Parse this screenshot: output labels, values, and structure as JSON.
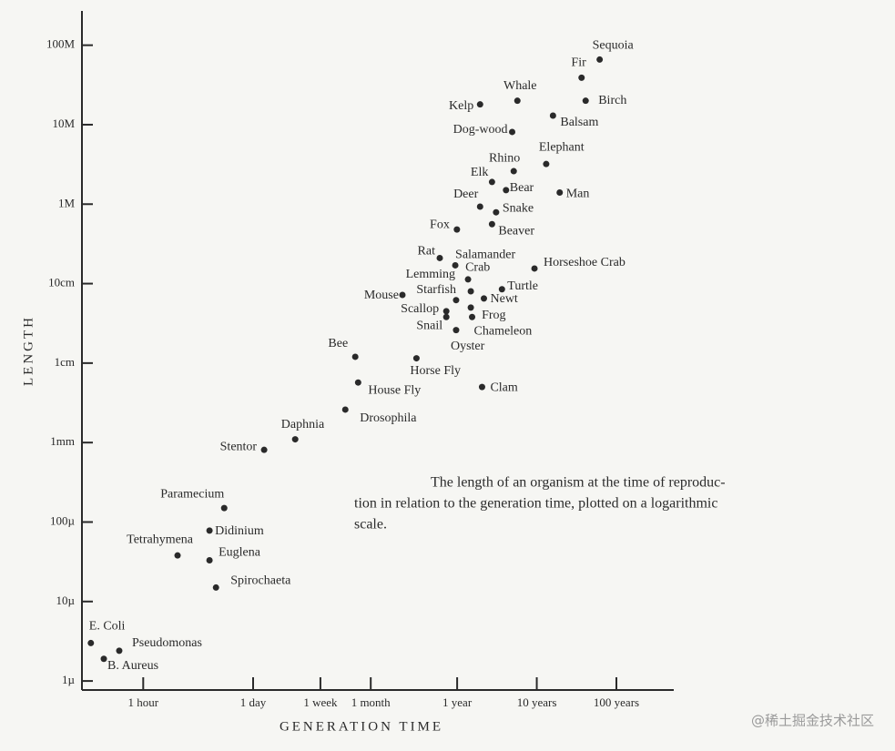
{
  "chart_data": {
    "type": "scatter",
    "x_label": "GENERATION TIME",
    "y_label": "LENGTH",
    "caption": [
      "The length of an organism at the time of reproduc-",
      "tion in relation to the generation time, plotted on a logarithmic",
      "scale."
    ],
    "watermark": "@稀土掘金技术社区",
    "xscale": "log",
    "yscale": "log",
    "xlim": [
      0.17,
      4600000
    ],
    "ylim": [
      7.7e-07,
      270
    ],
    "xticks": [
      {
        "value": 1,
        "label": "1 hour"
      },
      {
        "value": 24,
        "label": "1 day"
      },
      {
        "value": 168,
        "label": "1 week"
      },
      {
        "value": 720,
        "label": "1 month"
      },
      {
        "value": 8760,
        "label": "1 year"
      },
      {
        "value": 87600,
        "label": "10 years"
      },
      {
        "value": 876000,
        "label": "100 years"
      }
    ],
    "yticks": [
      {
        "value": 1e-06,
        "label": "1µ"
      },
      {
        "value": 1e-05,
        "label": "10µ"
      },
      {
        "value": 0.0001,
        "label": "100µ"
      },
      {
        "value": 0.001,
        "label": "1mm"
      },
      {
        "value": 0.01,
        "label": "1cm"
      },
      {
        "value": 0.1,
        "label": "10cm"
      },
      {
        "value": 1,
        "label": "1M"
      },
      {
        "value": 10,
        "label": "10M"
      },
      {
        "value": 100,
        "label": "100M"
      }
    ],
    "color": "#2a2a2a",
    "labels": [
      "Sequoia",
      "Fir",
      "Whale",
      "Birch",
      "Kelp",
      "Balsam",
      "Dog-wood",
      "Elephant",
      "Rhino",
      "Elk",
      "Bear",
      "Man",
      "Deer",
      "Snake",
      "Beaver",
      "Fox",
      "Rat",
      "Salamander",
      "Horseshoe Crab",
      "Crab",
      "Lemming",
      "Turtle",
      "Starfish",
      "Mouse",
      "Newt",
      "Frog",
      "Chameleon",
      "Oyster",
      "Snail",
      "Scallop",
      "Bee",
      "Horse Fly",
      "House Fly",
      "Clam",
      "Drosophila",
      "Daphnia",
      "Stentor",
      "Paramecium",
      "Didinium",
      "Tetrahymena",
      "Euglena",
      "Spirochaeta",
      "E. Coli",
      "Pseudomonas",
      "B. Aureus"
    ],
    "x": [
      540000,
      320000,
      50000,
      360000,
      17000,
      140000,
      43000,
      115000,
      45000,
      24000,
      36000,
      170000,
      17000,
      27000,
      24000,
      8700,
      5300,
      8300,
      82000,
      13000,
      12000,
      32000,
      8500,
      1800,
      19000,
      13000,
      13500,
      8500,
      6400,
      6400,
      460,
      2700,
      500,
      18000,
      345,
      81,
      33,
      10.4,
      6.8,
      2.7,
      6.8,
      8.2,
      0.22,
      0.5,
      0.32
    ],
    "values": [
      66,
      39,
      20,
      20,
      18,
      13,
      8.1,
      3.2,
      2.6,
      1.9,
      1.5,
      1.4,
      0.93,
      0.79,
      0.56,
      0.48,
      0.21,
      0.17,
      0.155,
      0.08,
      0.113,
      0.085,
      0.062,
      0.072,
      0.065,
      0.05,
      0.038,
      0.026,
      0.038,
      0.045,
      0.012,
      0.0115,
      0.0057,
      0.005,
      0.0026,
      0.0011,
      0.00081,
      0.00015,
      7.8e-05,
      3.8e-05,
      3.3e-05,
      1.5e-05,
      3e-06,
      2.4e-06,
      1.9e-06
    ]
  }
}
